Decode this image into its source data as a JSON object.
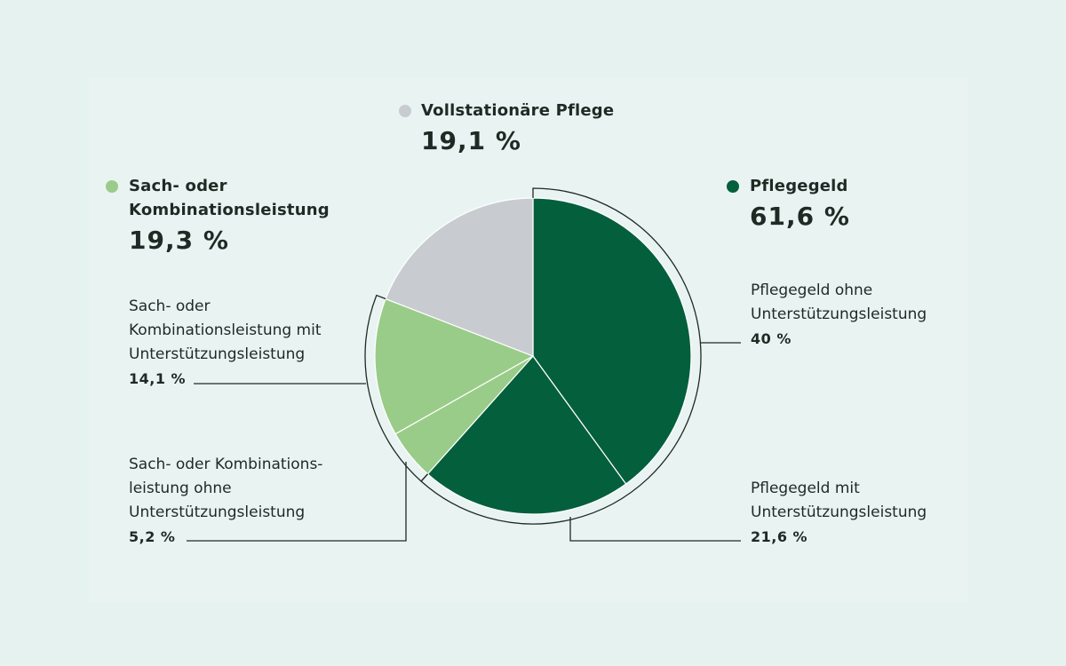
{
  "chart_data": {
    "type": "pie",
    "categories": [
      {
        "name": "Pflegegeld",
        "value": "61,6 %",
        "color": "#045f3c"
      },
      {
        "name": "Sach- oder Kombinationsleistung",
        "value": "19,3 %",
        "color": "#99cc88"
      },
      {
        "name": "Vollstationäre Pflege",
        "value": "19,1 %",
        "color": "#c8ccd0"
      }
    ],
    "slices": [
      {
        "key": "pg_ohne",
        "label": "Pflegegeld ohne Unterstützungsleistung",
        "value": 40,
        "display": "40 %",
        "color": "#045f3c"
      },
      {
        "key": "pg_mit",
        "label": "Pflegegeld mit Unterstützungsleistung",
        "value": 21.6,
        "display": "21,6 %",
        "color": "#045f3c"
      },
      {
        "key": "sk_ohne",
        "label": "Sach- oder Kombinationsleistung ohne Unterstützungsleistung",
        "value": 5.2,
        "display": "5,2 %",
        "color": "#99cc88"
      },
      {
        "key": "sk_mit",
        "label": "Sach- oder Kombinationsleistung mit Unterstützungsleistung",
        "value": 14.1,
        "display": "14,1 %",
        "color": "#99cc88"
      },
      {
        "key": "voll",
        "label": "Vollstationäre Pflege",
        "value": 19.1,
        "display": "19,1 %",
        "color": "#c8ccd0"
      }
    ],
    "legend": {
      "pflegegeld": {
        "lines": [
          "Pflegegeld"
        ],
        "value": "61,6 %"
      },
      "sach": {
        "lines": [
          "Sach- oder",
          "Kombinationsleistung"
        ],
        "value": "19,3 %"
      },
      "voll": {
        "lines": [
          "Vollstationäre Pflege"
        ],
        "value": "19,1 %"
      }
    },
    "sublabels": {
      "pg_ohne": {
        "lines": [
          "Pflegegeld ohne",
          "Unterstützungsleistung"
        ],
        "value": "40 %"
      },
      "pg_mit": {
        "lines": [
          "Pflegegeld mit",
          "Unterstützungsleistung"
        ],
        "value": "21,6 %"
      },
      "sk_mit": {
        "lines": [
          "Sach- oder",
          "Kombinationsleistung mit",
          "Unterstützungsleistung"
        ],
        "value": "14,1 %"
      },
      "sk_ohne": {
        "lines": [
          "Sach- oder Kombinations-",
          "leistung ohne",
          "Unterstützungsleistung"
        ],
        "value": "5,2 %"
      }
    }
  }
}
